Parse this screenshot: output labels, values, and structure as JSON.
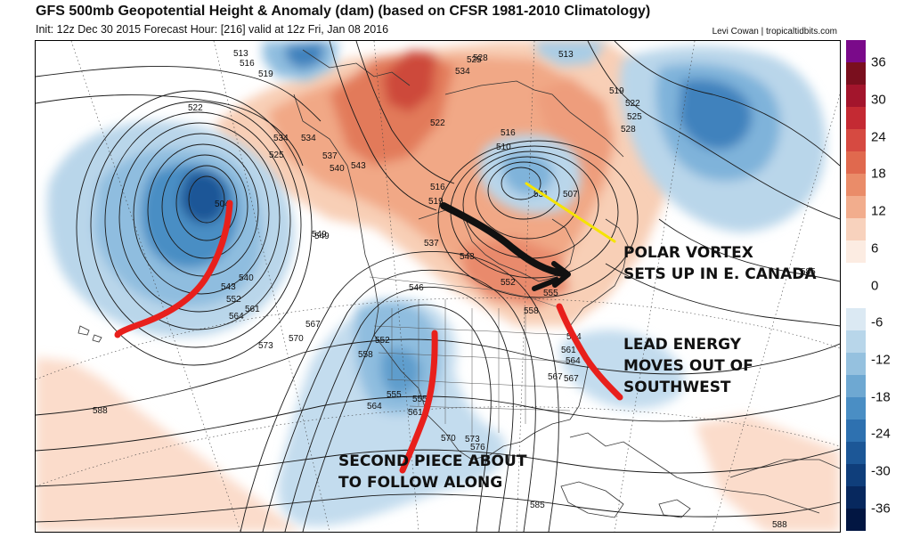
{
  "header": {
    "title": "GFS 500mb Geopotential Height & Anomaly (dam) (based on CFSR 1981-2010 Climatology)",
    "subtitle": "Init: 12z Dec 30 2015   Forecast Hour: [216]   valid at 12z Fri, Jan 08 2016",
    "credit": "Levi Cowan | tropicaltidbits.com"
  },
  "colorbar": {
    "labels": [
      "36",
      "30",
      "24",
      "18",
      "12",
      "6",
      "0",
      "-6",
      "-12",
      "-18",
      "-24",
      "-30",
      "-36"
    ],
    "colors": [
      "#7a0a8a",
      "#7a0f1e",
      "#a3152c",
      "#c42a33",
      "#d64a41",
      "#e0694e",
      "#ea8c69",
      "#f2ad8d",
      "#f8d2bd",
      "#fcece2",
      "#ffffff",
      "#ffffff",
      "#dbe9f3",
      "#b8d6ea",
      "#95c1df",
      "#6ea8d2",
      "#4a8ec4",
      "#2e71b0",
      "#1c5797",
      "#0f3e7b",
      "#07285e",
      "#021642"
    ]
  },
  "contour_labels": [
    "513",
    "516",
    "519",
    "522",
    "525",
    "528",
    "534",
    "537",
    "540",
    "543",
    "546",
    "549",
    "552",
    "555",
    "558",
    "561",
    "564",
    "567",
    "570",
    "573",
    "576",
    "585",
    "588",
    "504",
    "507",
    "510",
    "531"
  ],
  "map_labels": [
    {
      "id": "l513a",
      "text": "513"
    },
    {
      "id": "l516a",
      "text": "516"
    },
    {
      "id": "l519a",
      "text": "519"
    },
    {
      "id": "l522a",
      "text": "522"
    },
    {
      "id": "l525a",
      "text": "525"
    },
    {
      "id": "l534a",
      "text": "534"
    },
    {
      "id": "l537a",
      "text": "537"
    },
    {
      "id": "l540a",
      "text": "540"
    },
    {
      "id": "l543a",
      "text": "543"
    },
    {
      "id": "l549a",
      "text": "549"
    },
    {
      "id": "l546a",
      "text": "546"
    },
    {
      "id": "l552a",
      "text": "552"
    },
    {
      "id": "l555a",
      "text": "555"
    },
    {
      "id": "l558a",
      "text": "558"
    },
    {
      "id": "l561a",
      "text": "561"
    },
    {
      "id": "l564a",
      "text": "564"
    },
    {
      "id": "l567a",
      "text": "567"
    },
    {
      "id": "l570a",
      "text": "570"
    },
    {
      "id": "l573a",
      "text": "573"
    },
    {
      "id": "l576a",
      "text": "576"
    },
    {
      "id": "l585a",
      "text": "585"
    },
    {
      "id": "l588a",
      "text": "588"
    },
    {
      "id": "l588b",
      "text": "588"
    },
    {
      "id": "l585b",
      "text": "585"
    },
    {
      "id": "l528a",
      "text": "528"
    },
    {
      "id": "l534b",
      "text": "534"
    },
    {
      "id": "l522b",
      "text": "522"
    },
    {
      "id": "l525b",
      "text": "525"
    },
    {
      "id": "l528b",
      "text": "528"
    },
    {
      "id": "l519b",
      "text": "519"
    },
    {
      "id": "l516b",
      "text": "516"
    },
    {
      "id": "l513b",
      "text": "513"
    },
    {
      "id": "l510a",
      "text": "510"
    },
    {
      "id": "l519c",
      "text": "519"
    },
    {
      "id": "l537b",
      "text": "537"
    },
    {
      "id": "l543b",
      "text": "543"
    },
    {
      "id": "l552b",
      "text": "552"
    },
    {
      "id": "l555b",
      "text": "555"
    },
    {
      "id": "l558b",
      "text": "558"
    },
    {
      "id": "l564b",
      "text": "564"
    },
    {
      "id": "l567b",
      "text": "567"
    },
    {
      "id": "l570b",
      "text": "570"
    },
    {
      "id": "l573b",
      "text": "573"
    },
    {
      "id": "l564c",
      "text": "564"
    },
    {
      "id": "l561b",
      "text": "561"
    },
    {
      "id": "l555c",
      "text": "555"
    },
    {
      "id": "l549b",
      "text": "549"
    },
    {
      "id": "l540b",
      "text": "540"
    },
    {
      "id": "l543c",
      "text": "543"
    },
    {
      "id": "l552c",
      "text": "552"
    },
    {
      "id": "l561c",
      "text": "561"
    },
    {
      "id": "l564d",
      "text": "564"
    },
    {
      "id": "l516c",
      "text": "516"
    },
    {
      "id": "l534c",
      "text": "534"
    },
    {
      "id": "l522c",
      "text": "522"
    },
    {
      "id": "l525c",
      "text": "525"
    },
    {
      "id": "l531a",
      "text": "531"
    },
    {
      "id": "l567c",
      "text": "567"
    },
    {
      "id": "l504a",
      "text": "504"
    },
    {
      "id": "l507a",
      "text": "507"
    }
  ],
  "annotations": {
    "polar_vortex": [
      "POLAR VORTEX",
      "SETS UP IN E. CANADA"
    ],
    "lead_energy": [
      "LEAD ENERGY",
      "MOVES OUT OF",
      "SOUTHWEST"
    ],
    "second_piece": [
      "SECOND PIECE ABOUT",
      "TO FOLLOW ALONG"
    ]
  },
  "drawing_colors": {
    "red_marker": "#e8201c",
    "black_arrow": "#111111",
    "yellow_marker": "#f5e400",
    "contour": "#1a1a1a",
    "land_outline": "#333333"
  }
}
